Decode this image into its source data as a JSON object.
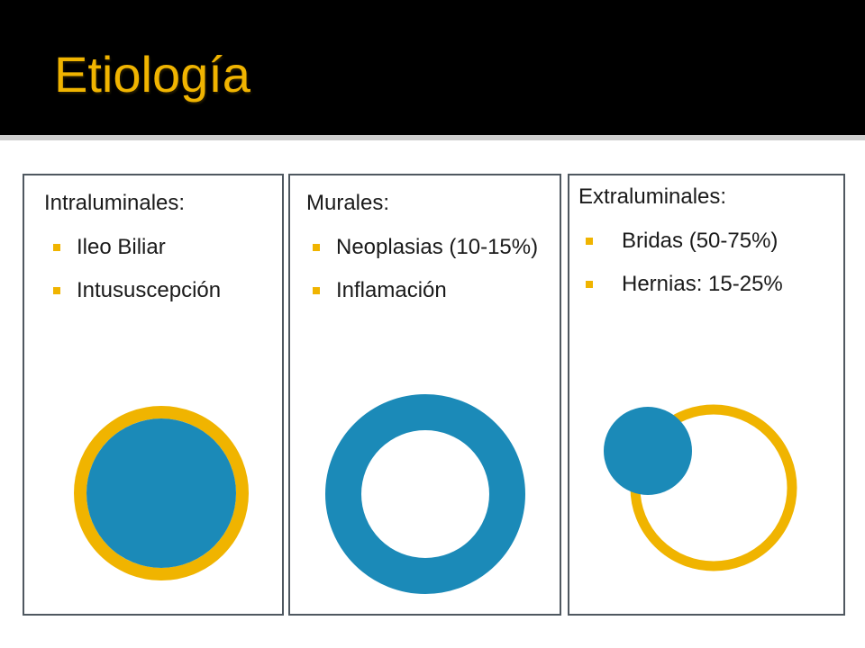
{
  "slide": {
    "title": "Etiología"
  },
  "panels": [
    {
      "heading": "Intraluminales:",
      "items": [
        "Ileo Biliar",
        "Intususcepción"
      ]
    },
    {
      "heading": "Murales:",
      "items": [
        "Neoplasias (10-15%)",
        "Inflamación"
      ]
    },
    {
      "heading": "Extraluminales:",
      "items": [
        "Bridas (50-75%)",
        "Hernias: 15-25%"
      ]
    }
  ],
  "colors": {
    "accent_yellow": "#f0b400",
    "accent_blue": "#1b8ab8",
    "title_bg": "#000000",
    "panel_border": "#4f5860"
  }
}
